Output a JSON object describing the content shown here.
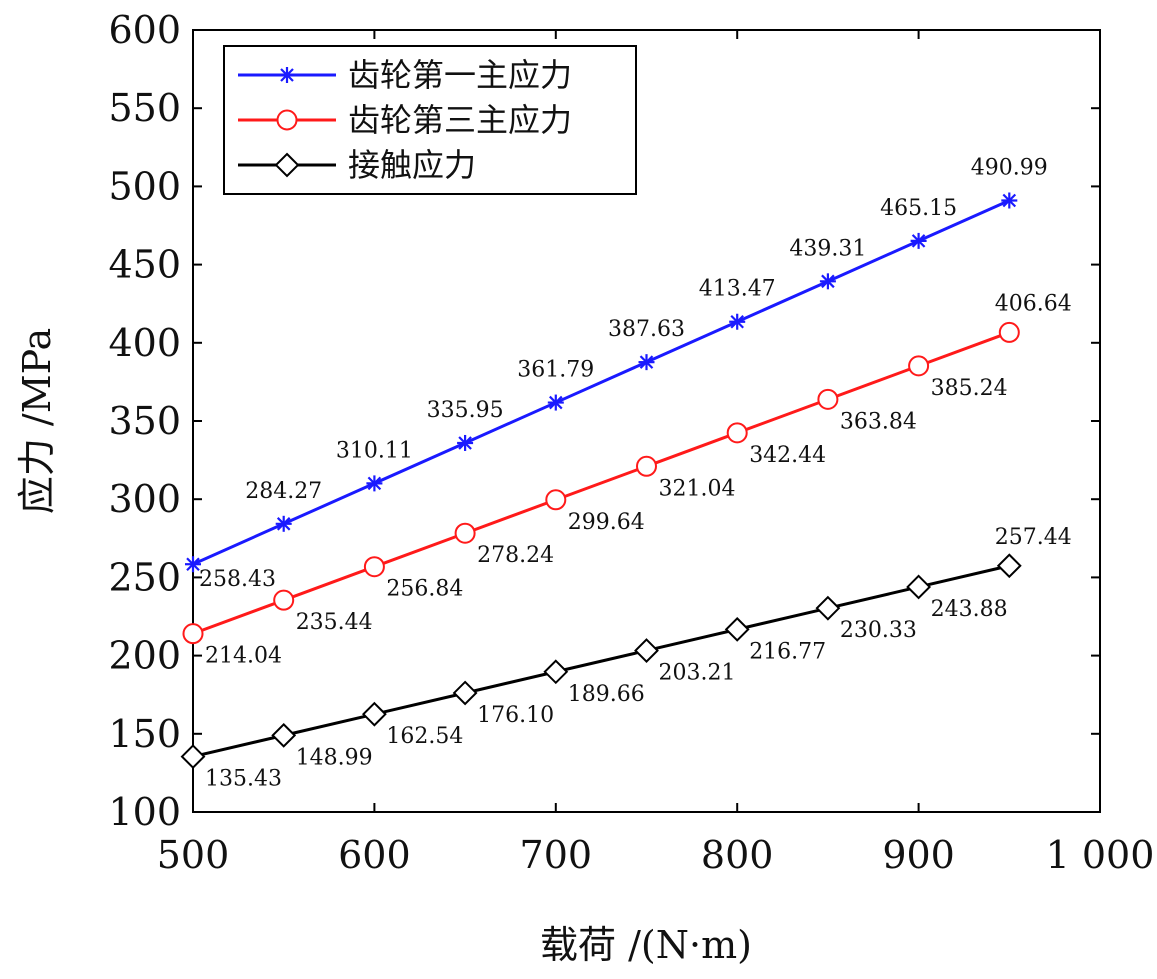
{
  "chart_data": {
    "type": "line",
    "xlabel": "载荷 /(N·m)",
    "ylabel": "应力 /MPa",
    "xlim": [
      500,
      1000
    ],
    "ylim": [
      100,
      600
    ],
    "x_ticks": [
      500,
      600,
      700,
      800,
      900,
      1000
    ],
    "x_tick_labels": [
      "500",
      "600",
      "700",
      "800",
      "900",
      "1 000"
    ],
    "y_ticks": [
      100,
      150,
      200,
      250,
      300,
      350,
      400,
      450,
      500,
      550,
      600
    ],
    "y_tick_labels": [
      "100",
      "150",
      "200",
      "250",
      "300",
      "350",
      "400",
      "450",
      "500",
      "550",
      "600"
    ],
    "grid": false,
    "legend_position": "top-left",
    "series": [
      {
        "name": "齿轮第一主应力",
        "color": "#1a1aff",
        "marker": "asterisk",
        "label_position": "above",
        "x": [
          500,
          550,
          600,
          650,
          700,
          750,
          800,
          850,
          900,
          950
        ],
        "values": [
          258.43,
          284.27,
          310.11,
          335.95,
          361.79,
          387.63,
          413.47,
          439.31,
          465.15,
          490.99
        ],
        "labels": [
          "258.43",
          "284.27",
          "310.11",
          "335.95",
          "361.79",
          "387.63",
          "413.47",
          "439.31",
          "465.15",
          "490.99"
        ]
      },
      {
        "name": "齿轮第三主应力",
        "color": "#ff1a1a",
        "marker": "circle",
        "label_position": "below-right",
        "x": [
          500,
          550,
          600,
          650,
          700,
          750,
          800,
          850,
          900,
          950
        ],
        "values": [
          214.04,
          235.44,
          256.84,
          278.24,
          299.64,
          321.04,
          342.44,
          363.84,
          385.24,
          406.64
        ],
        "labels": [
          "214.04",
          "235.44",
          "256.84",
          "278.24",
          "299.64",
          "321.04",
          "342.44",
          "363.84",
          "385.24",
          "406.64"
        ]
      },
      {
        "name": "接触应力",
        "color": "#000000",
        "marker": "diamond",
        "label_position": "below-right",
        "x": [
          500,
          550,
          600,
          650,
          700,
          750,
          800,
          850,
          900,
          950
        ],
        "values": [
          135.43,
          148.99,
          162.54,
          176.1,
          189.66,
          203.21,
          216.77,
          230.33,
          243.88,
          257.44
        ],
        "labels": [
          "135.43",
          "148.99",
          "162.54",
          "176.10",
          "189.66",
          "203.21",
          "216.77",
          "230.33",
          "243.88",
          "257.44"
        ]
      }
    ]
  }
}
